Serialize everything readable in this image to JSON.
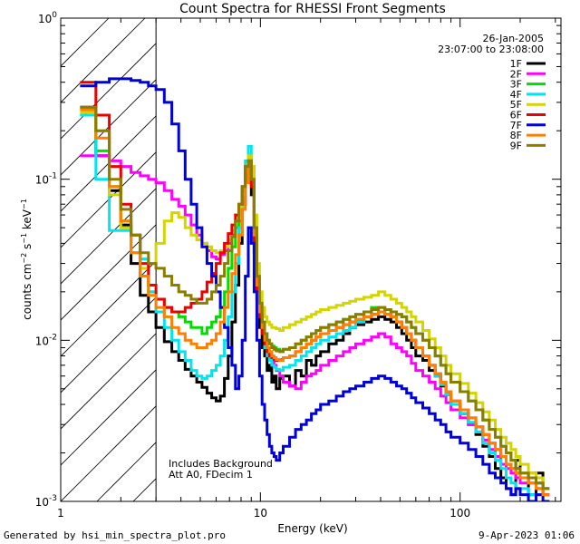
{
  "chart_data": {
    "type": "line",
    "style": "step",
    "title": "Count Spectra for RHESSI Front Segments",
    "xlabel": "Energy (keV)",
    "ylabel": "counts cm^-2 s^-1 keV^-1",
    "xscale": "log",
    "yscale": "log",
    "xlim": [
      1,
      320
    ],
    "ylim": [
      0.001,
      1.0
    ],
    "x_ticks": [
      {
        "value": 1,
        "label": "1"
      },
      {
        "value": 10,
        "label": "10"
      },
      {
        "value": 100,
        "label": "100"
      }
    ],
    "y_ticks": [
      {
        "value": 0.001,
        "base": "10",
        "exp": "-3"
      },
      {
        "value": 0.01,
        "base": "10",
        "exp": "-2"
      },
      {
        "value": 0.1,
        "base": "10",
        "exp": "-1"
      },
      {
        "value": 1,
        "base": "10",
        "exp": "0"
      }
    ],
    "threshold_line_x": 3,
    "legend_position": "top-right",
    "date": "26-Jan-2005",
    "time_range": "23:07:00 to 23:08:00",
    "annotation_lines": [
      "Includes Background",
      "Att A0, FDecim 1"
    ],
    "energy_bins": [
      1.25,
      1.5,
      1.75,
      2.0,
      2.25,
      2.5,
      2.75,
      3.0,
      3.3,
      3.6,
      3.9,
      4.2,
      4.5,
      4.8,
      5.1,
      5.4,
      5.7,
      6.0,
      6.3,
      6.6,
      6.9,
      7.2,
      7.5,
      7.8,
      8.1,
      8.4,
      8.7,
      9.0,
      9.3,
      9.6,
      9.9,
      10.2,
      10.5,
      10.8,
      11.1,
      11.4,
      11.7,
      12.0,
      12.5,
      13.0,
      14.0,
      15.0,
      16.0,
      17.0,
      18.0,
      19.0,
      20.0,
      22.0,
      24.0,
      26.0,
      28.0,
      30.0,
      33.0,
      36.0,
      39.0,
      42.0,
      45.0,
      48.0,
      51.0,
      54.0,
      57.0,
      60.0,
      65.0,
      70.0,
      75.0,
      80.0,
      85.0,
      90.0,
      100.0,
      110.0,
      120.0,
      130.0,
      140.0,
      150.0,
      160.0,
      170.0,
      180.0,
      190.0,
      200.0,
      220.0,
      240.0,
      260.0,
      280.0,
      300.0
    ],
    "series": [
      {
        "name": "1F",
        "color": "#000000",
        "values": [
          0.28,
          0.14,
          0.085,
          0.052,
          0.03,
          0.019,
          0.015,
          0.012,
          0.0098,
          0.0085,
          0.0075,
          0.0066,
          0.006,
          0.0055,
          0.0051,
          0.0047,
          0.0044,
          0.0042,
          0.0045,
          0.0058,
          0.008,
          0.013,
          0.022,
          0.04,
          0.07,
          0.11,
          0.12,
          0.08,
          0.035,
          0.018,
          0.012,
          0.009,
          0.008,
          0.0065,
          0.007,
          0.0055,
          0.006,
          0.005,
          0.0058,
          0.006,
          0.0052,
          0.0065,
          0.006,
          0.0075,
          0.007,
          0.008,
          0.0085,
          0.0095,
          0.01,
          0.011,
          0.012,
          0.0125,
          0.013,
          0.0135,
          0.014,
          0.0135,
          0.013,
          0.012,
          0.011,
          0.01,
          0.009,
          0.008,
          0.0075,
          0.0065,
          0.006,
          0.0052,
          0.0046,
          0.004,
          0.0035,
          0.003,
          0.0026,
          0.0022,
          0.0019,
          0.0016,
          0.0014,
          0.0012,
          0.0011,
          0.0018,
          0.0014,
          0.0011,
          0.0015,
          0.0012
        ]
      },
      {
        "name": "2F",
        "color": "#ff00ff",
        "values": [
          0.14,
          0.14,
          0.13,
          0.12,
          0.11,
          0.105,
          0.1,
          0.095,
          0.085,
          0.075,
          0.068,
          0.06,
          0.052,
          0.045,
          0.04,
          0.036,
          0.033,
          0.032,
          0.034,
          0.036,
          0.04,
          0.045,
          0.05,
          0.055,
          0.07,
          0.1,
          0.13,
          0.11,
          0.05,
          0.025,
          0.016,
          0.012,
          0.01,
          0.0085,
          0.008,
          0.0075,
          0.007,
          0.0065,
          0.006,
          0.0055,
          0.0052,
          0.005,
          0.0055,
          0.006,
          0.0062,
          0.0065,
          0.007,
          0.0075,
          0.008,
          0.0085,
          0.009,
          0.0095,
          0.01,
          0.0105,
          0.011,
          0.0105,
          0.0095,
          0.009,
          0.0085,
          0.008,
          0.0072,
          0.0065,
          0.006,
          0.0055,
          0.005,
          0.0045,
          0.0041,
          0.0037,
          0.0033,
          0.003,
          0.0027,
          0.0024,
          0.0021,
          0.0019,
          0.0017,
          0.0016,
          0.0015,
          0.0014,
          0.0013,
          0.0015,
          0.0013,
          0.0011
        ]
      },
      {
        "name": "3F",
        "color": "#00dd00",
        "values": [
          0.25,
          0.15,
          0.09,
          0.055,
          0.035,
          0.025,
          0.02,
          0.018,
          0.016,
          0.015,
          0.014,
          0.013,
          0.012,
          0.012,
          0.011,
          0.012,
          0.013,
          0.014,
          0.016,
          0.02,
          0.028,
          0.038,
          0.05,
          0.065,
          0.085,
          0.12,
          0.14,
          0.1,
          0.045,
          0.022,
          0.015,
          0.012,
          0.011,
          0.01,
          0.0095,
          0.0092,
          0.009,
          0.0088,
          0.0086,
          0.0088,
          0.009,
          0.0095,
          0.01,
          0.0105,
          0.011,
          0.0115,
          0.012,
          0.0125,
          0.013,
          0.0135,
          0.014,
          0.0145,
          0.015,
          0.016,
          0.016,
          0.0155,
          0.015,
          0.0145,
          0.014,
          0.013,
          0.012,
          0.011,
          0.01,
          0.009,
          0.008,
          0.007,
          0.0062,
          0.0055,
          0.0048,
          0.0042,
          0.0037,
          0.0032,
          0.0028,
          0.0025,
          0.0022,
          0.002,
          0.0018,
          0.0016,
          0.0015,
          0.0014,
          0.0013,
          0.0012
        ]
      },
      {
        "name": "4F",
        "color": "#00e5ee",
        "values": [
          0.25,
          0.1,
          0.048,
          0.048,
          0.045,
          0.032,
          0.02,
          0.015,
          0.012,
          0.01,
          0.0085,
          0.0075,
          0.0065,
          0.006,
          0.0058,
          0.006,
          0.0065,
          0.007,
          0.008,
          0.01,
          0.014,
          0.02,
          0.03,
          0.05,
          0.08,
          0.13,
          0.16,
          0.12,
          0.05,
          0.025,
          0.015,
          0.011,
          0.009,
          0.008,
          0.0075,
          0.007,
          0.0068,
          0.0066,
          0.0065,
          0.0068,
          0.007,
          0.0075,
          0.008,
          0.0085,
          0.009,
          0.0095,
          0.01,
          0.0105,
          0.011,
          0.0115,
          0.012,
          0.013,
          0.014,
          0.0145,
          0.015,
          0.0145,
          0.014,
          0.013,
          0.012,
          0.011,
          0.01,
          0.009,
          0.008,
          0.007,
          0.006,
          0.0053,
          0.0046,
          0.004,
          0.0035,
          0.0031,
          0.0027,
          0.0023,
          0.002,
          0.0018,
          0.0016,
          0.0014,
          0.0013,
          0.0012,
          0.0012,
          0.0011,
          0.0011,
          0.001
        ]
      },
      {
        "name": "5F",
        "color": "#d4d400",
        "values": [
          0.26,
          0.2,
          0.08,
          0.05,
          0.035,
          0.028,
          0.03,
          0.04,
          0.055,
          0.062,
          0.058,
          0.05,
          0.045,
          0.042,
          0.04,
          0.038,
          0.036,
          0.035,
          0.036,
          0.038,
          0.042,
          0.048,
          0.055,
          0.065,
          0.08,
          0.11,
          0.14,
          0.12,
          0.06,
          0.03,
          0.02,
          0.016,
          0.014,
          0.013,
          0.0125,
          0.012,
          0.012,
          0.0118,
          0.0115,
          0.012,
          0.0125,
          0.013,
          0.0135,
          0.014,
          0.0145,
          0.015,
          0.0155,
          0.016,
          0.0165,
          0.017,
          0.0175,
          0.018,
          0.0185,
          0.019,
          0.02,
          0.019,
          0.018,
          0.017,
          0.016,
          0.015,
          0.014,
          0.013,
          0.0115,
          0.0102,
          0.009,
          0.008,
          0.007,
          0.0062,
          0.0054,
          0.0047,
          0.0041,
          0.0036,
          0.0032,
          0.0028,
          0.0025,
          0.0023,
          0.0021,
          0.0019,
          0.0017,
          0.0015,
          0.0014,
          0.0012
        ]
      },
      {
        "name": "6F",
        "color": "#ee0000",
        "values": [
          0.4,
          0.25,
          0.12,
          0.07,
          0.045,
          0.03,
          0.022,
          0.018,
          0.016,
          0.015,
          0.015,
          0.016,
          0.017,
          0.018,
          0.02,
          0.023,
          0.026,
          0.03,
          0.035,
          0.04,
          0.046,
          0.052,
          0.06,
          0.07,
          0.09,
          0.12,
          0.13,
          0.09,
          0.04,
          0.02,
          0.014,
          0.011,
          0.0095,
          0.0085,
          0.008,
          0.0078,
          0.0076,
          0.0075,
          0.0076,
          0.0078,
          0.008,
          0.0085,
          0.009,
          0.0095,
          0.01,
          0.0105,
          0.011,
          0.0115,
          0.012,
          0.0125,
          0.013,
          0.0135,
          0.014,
          0.0145,
          0.015,
          0.0145,
          0.014,
          0.013,
          0.012,
          0.011,
          0.01,
          0.009,
          0.008,
          0.007,
          0.0062,
          0.0055,
          0.0048,
          0.0042,
          0.0037,
          0.0033,
          0.0029,
          0.0026,
          0.0023,
          0.0021,
          0.0019,
          0.0017,
          0.0016,
          0.0015,
          0.0014,
          0.0013,
          0.0012,
          0.0011
        ]
      },
      {
        "name": "7F",
        "color": "#0000dd",
        "values": [
          0.38,
          0.4,
          0.42,
          0.42,
          0.41,
          0.4,
          0.38,
          0.36,
          0.3,
          0.22,
          0.15,
          0.1,
          0.07,
          0.05,
          0.038,
          0.03,
          0.025,
          0.02,
          0.016,
          0.012,
          0.009,
          0.007,
          0.005,
          0.006,
          0.01,
          0.025,
          0.05,
          0.04,
          0.02,
          0.01,
          0.006,
          0.004,
          0.0032,
          0.0026,
          0.0022,
          0.002,
          0.0019,
          0.0018,
          0.002,
          0.0022,
          0.0025,
          0.0028,
          0.003,
          0.0032,
          0.0035,
          0.0037,
          0.004,
          0.0042,
          0.0045,
          0.0048,
          0.005,
          0.0052,
          0.0055,
          0.0058,
          0.006,
          0.0058,
          0.0055,
          0.0052,
          0.005,
          0.0047,
          0.0044,
          0.0041,
          0.0038,
          0.0035,
          0.0032,
          0.003,
          0.0027,
          0.0025,
          0.0023,
          0.0021,
          0.0019,
          0.0017,
          0.0015,
          0.0014,
          0.0013,
          0.0012,
          0.0011,
          0.0012,
          0.0011,
          0.001,
          0.0011,
          0.001
        ]
      },
      {
        "name": "8F",
        "color": "#ff7f00",
        "values": [
          0.27,
          0.18,
          0.09,
          0.055,
          0.035,
          0.025,
          0.019,
          0.016,
          0.014,
          0.012,
          0.011,
          0.01,
          0.0095,
          0.009,
          0.009,
          0.0095,
          0.01,
          0.011,
          0.013,
          0.016,
          0.02,
          0.026,
          0.034,
          0.045,
          0.065,
          0.095,
          0.12,
          0.1,
          0.045,
          0.022,
          0.015,
          0.012,
          0.01,
          0.009,
          0.0085,
          0.008,
          0.0078,
          0.0076,
          0.0075,
          0.0078,
          0.008,
          0.0085,
          0.009,
          0.0095,
          0.01,
          0.0105,
          0.011,
          0.0115,
          0.012,
          0.0125,
          0.013,
          0.0135,
          0.014,
          0.0145,
          0.015,
          0.0145,
          0.014,
          0.013,
          0.012,
          0.011,
          0.01,
          0.009,
          0.008,
          0.007,
          0.0062,
          0.0055,
          0.0048,
          0.0042,
          0.0037,
          0.0033,
          0.0029,
          0.0026,
          0.0023,
          0.0021,
          0.0019,
          0.0017,
          0.0016,
          0.0015,
          0.0014,
          0.0013,
          0.0012,
          0.0011
        ]
      },
      {
        "name": "9F",
        "color": "#8b7d00",
        "values": [
          0.28,
          0.2,
          0.1,
          0.065,
          0.045,
          0.035,
          0.03,
          0.028,
          0.025,
          0.022,
          0.02,
          0.019,
          0.018,
          0.017,
          0.017,
          0.018,
          0.02,
          0.022,
          0.025,
          0.03,
          0.036,
          0.044,
          0.055,
          0.07,
          0.09,
          0.12,
          0.13,
          0.1,
          0.05,
          0.025,
          0.017,
          0.013,
          0.011,
          0.01,
          0.0095,
          0.009,
          0.0088,
          0.0086,
          0.0085,
          0.0088,
          0.009,
          0.0095,
          0.01,
          0.0105,
          0.011,
          0.0115,
          0.012,
          0.0125,
          0.013,
          0.0135,
          0.014,
          0.0145,
          0.015,
          0.0155,
          0.016,
          0.0155,
          0.015,
          0.0145,
          0.014,
          0.013,
          0.012,
          0.011,
          0.01,
          0.009,
          0.008,
          0.007,
          0.0062,
          0.0055,
          0.0048,
          0.0042,
          0.0037,
          0.0032,
          0.0028,
          0.0025,
          0.0022,
          0.002,
          0.0018,
          0.0016,
          0.0015,
          0.0014,
          0.0013,
          0.0012
        ]
      }
    ]
  },
  "footer": {
    "left": "Generated by hsi_min_spectra_plot.pro",
    "right": "9-Apr-2023 01:06"
  }
}
